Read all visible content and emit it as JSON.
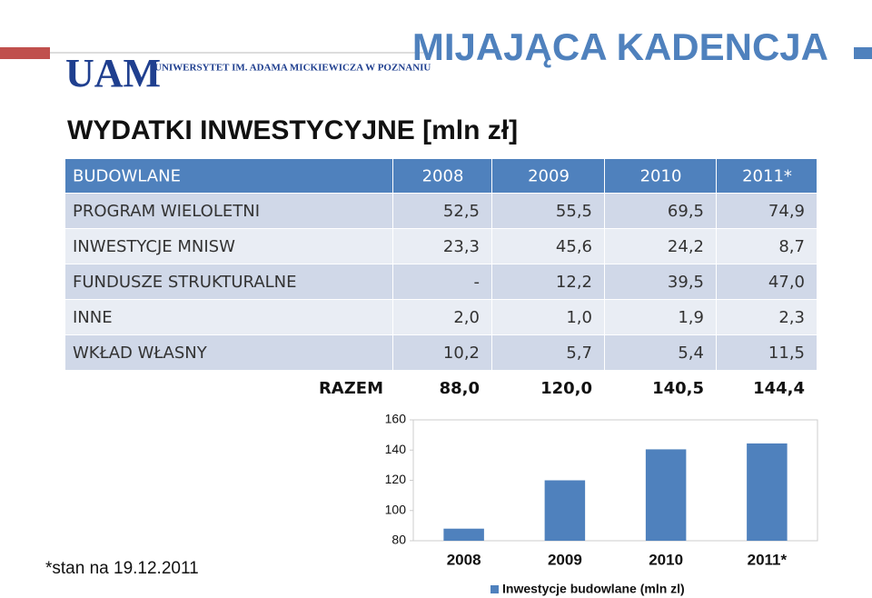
{
  "header": {
    "logo": "UAM",
    "university": "UNIWERSYTET IM. ADAMA MICKIEWICZA W POZNANIU",
    "title": "MIJAJĄCA KADENCJA",
    "subtitle": "WYDATKI INWESTYCYJNE [mln zł]"
  },
  "table": {
    "header": [
      "BUDOWLANE",
      "2008",
      "2009",
      "2010",
      "2011*"
    ],
    "rows": [
      [
        "PROGRAM WIELOLETNI",
        "52,5",
        "55,5",
        "69,5",
        "74,9"
      ],
      [
        "INWESTYCJE MNISW",
        "23,3",
        "45,6",
        "24,2",
        "8,7"
      ],
      [
        "FUNDUSZE STRUKTURALNE",
        "-",
        "12,2",
        "39,5",
        "47,0"
      ],
      [
        "INNE",
        "2,0",
        "1,0",
        "1,9",
        "2,3"
      ],
      [
        "WKŁAD WŁASNY",
        "10,2",
        "5,7",
        "5,4",
        "11,5"
      ]
    ],
    "total": [
      "RAZEM",
      "88,0",
      "120,0",
      "140,5",
      "144,4"
    ]
  },
  "chart_data": {
    "type": "bar",
    "categories": [
      "2008",
      "2009",
      "2010",
      "2011*"
    ],
    "series": [
      {
        "name": "Inwestycje budowlane (mln zl)",
        "color": "#4f81bd",
        "values": [
          88,
          120,
          140.5,
          144.4
        ]
      }
    ],
    "ylim": [
      80,
      160
    ],
    "yticks": [
      80,
      100,
      120,
      140,
      160
    ],
    "grid": false,
    "legend": "bottom"
  },
  "footnote": "*stan na 19.12.2011"
}
